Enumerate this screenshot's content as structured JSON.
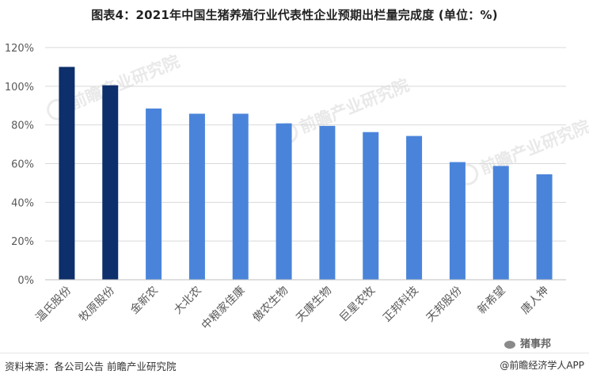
{
  "title": "图表4：2021年中国生猪养殖行业代表性企业预期出栏量完成度 (单位：%)",
  "source": "资料来源：各公司公告 前瞻产业研究院",
  "brand": "@前瞻经济学人APP",
  "badge": "猪事邦",
  "watermark": {
    "text": "前瞻产业研究院"
  },
  "colors": {
    "highlight": "#0d2f6b",
    "normal": "#4a84da",
    "grid": "#d9d9d9",
    "axis": "#bfbfbf"
  },
  "chart_data": {
    "type": "bar",
    "title": "图表4：2021年中国生猪养殖行业代表性企业预期出栏量完成度 (单位：%)",
    "xlabel": "",
    "ylabel": "",
    "categories": [
      "温氏股份",
      "牧原股份",
      "金新农",
      "大北农",
      "中粮家佳康",
      "傲农生物",
      "天康生物",
      "巨星农牧",
      "正邦科技",
      "天邦股份",
      "新希望",
      "唐人神"
    ],
    "values": [
      110,
      100.5,
      88.5,
      85.8,
      85.8,
      80.8,
      79.5,
      76.3,
      74.3,
      60.8,
      58.8,
      54.5
    ],
    "highlighted": [
      "温氏股份",
      "牧原股份"
    ],
    "ylim": [
      0,
      120
    ],
    "yticks": [
      0,
      20,
      40,
      60,
      80,
      100,
      120
    ],
    "ytick_labels": [
      "0%",
      "20%",
      "40%",
      "60%",
      "80%",
      "100%",
      "120%"
    ],
    "grid": true,
    "legend": "none"
  }
}
